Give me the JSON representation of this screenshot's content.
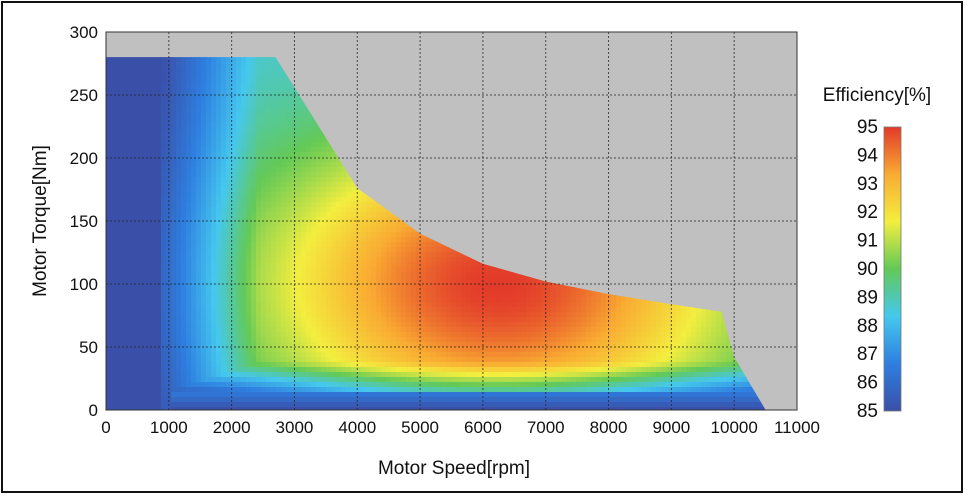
{
  "chart_data": {
    "type": "heatmap",
    "xlabel": "Motor Speed[rpm]",
    "ylabel": "Motor Torque[Nm]",
    "xlim": [
      0,
      11000
    ],
    "ylim": [
      0,
      300
    ],
    "xticks": [
      0,
      1000,
      2000,
      3000,
      4000,
      5000,
      6000,
      7000,
      8000,
      9000,
      10000,
      11000
    ],
    "yticks": [
      0,
      50,
      100,
      150,
      200,
      250,
      300
    ],
    "grid": true,
    "colorbar": {
      "title": "Efficiency[%]",
      "min": 85,
      "max": 95,
      "ticks": [
        95,
        94,
        93,
        92,
        91,
        90,
        89,
        88,
        87,
        86,
        85
      ],
      "colors": [
        "#3a4fa8",
        "#2e7fe0",
        "#45c8ee",
        "#63c957",
        "#f3ee3f",
        "#f9ab32",
        "#e23a2a"
      ]
    },
    "operating_envelope": {
      "max_torque": 280,
      "base_speed": 2700,
      "corner_points": [
        [
          2700,
          280
        ],
        [
          4000,
          176
        ],
        [
          5000,
          140
        ],
        [
          6000,
          116
        ],
        [
          7000,
          102
        ],
        [
          8000,
          92
        ],
        [
          9000,
          84
        ],
        [
          9800,
          78
        ],
        [
          10000,
          42
        ],
        [
          10500,
          0
        ]
      ]
    },
    "peak_efficiency_region": {
      "speed_range": [
        5500,
        7000
      ],
      "torque_range": [
        70,
        130
      ],
      "efficiency": 95
    },
    "background_color": "#c0c0c0"
  }
}
